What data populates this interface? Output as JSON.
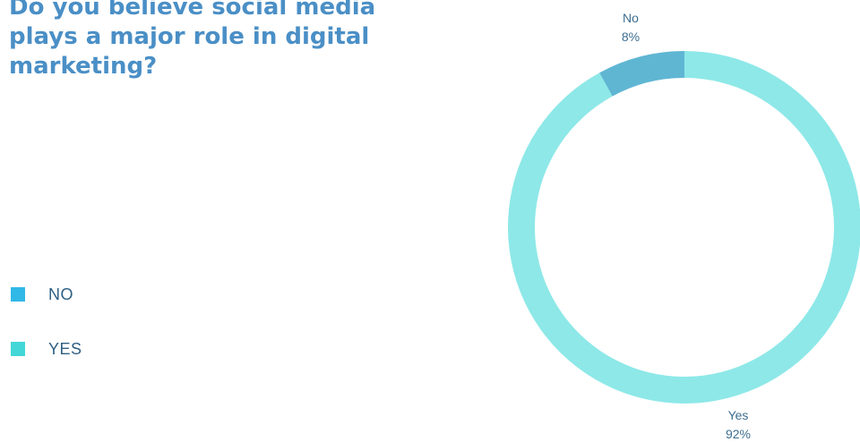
{
  "chart_data": {
    "type": "pie",
    "variant": "donut",
    "title": "Do you believe social media plays a major role in digital marketing?",
    "legend": {
      "placement": "left",
      "entries": [
        {
          "label": "NO",
          "color": "#30b8e6"
        },
        {
          "label": "YES",
          "color": "#43d7d8"
        }
      ]
    },
    "slices": [
      {
        "name": "No",
        "value": 8,
        "value_label": "8%",
        "color": "#5fb6d3"
      },
      {
        "name": "Yes",
        "value": 92,
        "value_label": "92%",
        "color": "#8ee8e8"
      }
    ]
  }
}
